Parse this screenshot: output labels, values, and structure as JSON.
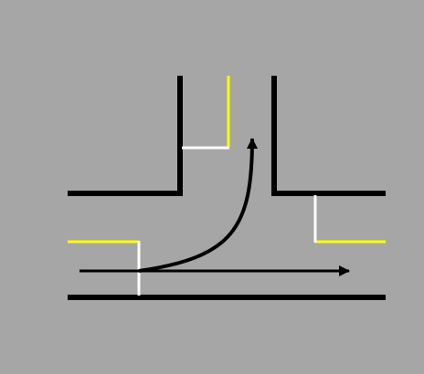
{
  "colors": {
    "background": "#a6a6a6",
    "curb": "#000000",
    "center_line": "#ffff00",
    "stop_line": "#ffffff",
    "arrow": "#000000"
  },
  "diagram": {
    "road_layout": "T-intersection",
    "movements": [
      {
        "name": "left-turn",
        "from": "west",
        "to": "north"
      },
      {
        "name": "through",
        "from": "west",
        "to": "east"
      }
    ]
  }
}
